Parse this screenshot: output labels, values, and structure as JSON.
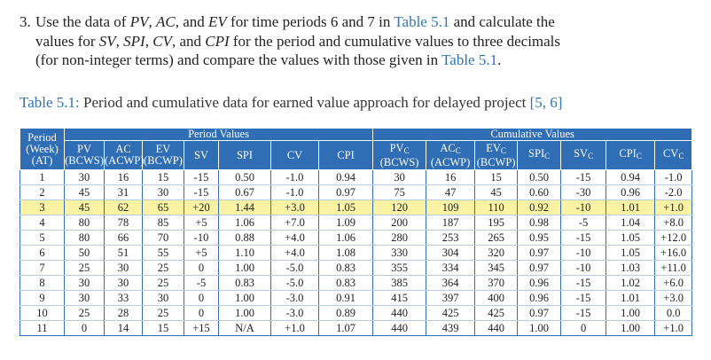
{
  "question": {
    "number": "3.",
    "segments": [
      "Use the data of ",
      "PV",
      ", ",
      "AC",
      ", and ",
      "EV",
      " for time periods 6 and 7 in ",
      "Table 5.1",
      " and calculate the values for ",
      "SV",
      ", ",
      "SPI",
      ", ",
      "CV",
      ", and ",
      "CPI",
      " for the period and cumulative values to three decimals (for non-integer terms) and compare the values with those given in ",
      "Table 5.1",
      "."
    ]
  },
  "caption": {
    "label": "Table 5.1:",
    "text": " Period and cumulative data for earned value approach for delayed project ",
    "refs": "[5, 6]"
  },
  "table": {
    "period_header": [
      "Period",
      "(Week)",
      "(AT)"
    ],
    "groups": [
      "Period Values",
      "Cumulative Values"
    ],
    "columns": [
      {
        "label": "PV",
        "note": "(BCWS)"
      },
      {
        "label": "AC",
        "note": "(ACWP)"
      },
      {
        "label": "EV",
        "note": "(BCWP)"
      },
      {
        "label": "SV"
      },
      {
        "label": "SPI"
      },
      {
        "label": "CV"
      },
      {
        "label": "CPI"
      },
      {
        "label": "PV",
        "sub": "C",
        "note": "(BCWS)"
      },
      {
        "label": "AC",
        "sub": "C",
        "note": "(ACWP)"
      },
      {
        "label": "EV",
        "sub": "C",
        "note": "(BCWP)"
      },
      {
        "label": "SPI",
        "sub": "C"
      },
      {
        "label": "SV",
        "sub": "C"
      },
      {
        "label": "CPI",
        "sub": "C"
      },
      {
        "label": "CV",
        "sub": "C"
      }
    ],
    "highlight_row": 2,
    "rows": [
      [
        "1",
        "30",
        "16",
        "15",
        "-15",
        "0.50",
        "-1.0",
        "0.94",
        "30",
        "16",
        "15",
        "0.50",
        "-15",
        "0.94",
        "-1.0"
      ],
      [
        "2",
        "45",
        "31",
        "30",
        "-15",
        "0.67",
        "-1.0",
        "0.97",
        "75",
        "47",
        "45",
        "0.60",
        "-30",
        "0.96",
        "-2.0"
      ],
      [
        "3",
        "45",
        "62",
        "65",
        "+20",
        "1.44",
        "+3.0",
        "1.05",
        "120",
        "109",
        "110",
        "0.92",
        "-10",
        "1.01",
        "+1.0"
      ],
      [
        "4",
        "80",
        "78",
        "85",
        "+5",
        "1.06",
        "+7.0",
        "1.09",
        "200",
        "187",
        "195",
        "0.98",
        "-5",
        "1.04",
        "+8.0"
      ],
      [
        "5",
        "80",
        "66",
        "70",
        "-10",
        "0.88",
        "+4.0",
        "1.06",
        "280",
        "253",
        "265",
        "0.95",
        "-15",
        "1.05",
        "+12.0"
      ],
      [
        "6",
        "50",
        "51",
        "55",
        "+5",
        "1.10",
        "+4.0",
        "1.08",
        "330",
        "304",
        "320",
        "0.97",
        "-10",
        "1.05",
        "+16.0"
      ],
      [
        "7",
        "25",
        "30",
        "25",
        "0",
        "1.00",
        "-5.0",
        "0.83",
        "355",
        "334",
        "345",
        "0.97",
        "-10",
        "1.03",
        "+11.0"
      ],
      [
        "8",
        "30",
        "30",
        "25",
        "-5",
        "0.83",
        "-5.0",
        "0.83",
        "385",
        "364",
        "370",
        "0.96",
        "-15",
        "1.02",
        "+6.0"
      ],
      [
        "9",
        "30",
        "33",
        "30",
        "0",
        "1.00",
        "-3.0",
        "0.91",
        "415",
        "397",
        "400",
        "0.96",
        "-15",
        "1.01",
        "+3.0"
      ],
      [
        "10",
        "25",
        "28",
        "25",
        "0",
        "1.00",
        "-3.0",
        "0.89",
        "440",
        "425",
        "425",
        "0.97",
        "-15",
        "1.00",
        "0.0"
      ],
      [
        "11",
        "0",
        "14",
        "15",
        "+15",
        "N/A",
        "+1.0",
        "1.07",
        "440",
        "439",
        "440",
        "1.00",
        "0",
        "1.00",
        "+1.0"
      ]
    ]
  }
}
